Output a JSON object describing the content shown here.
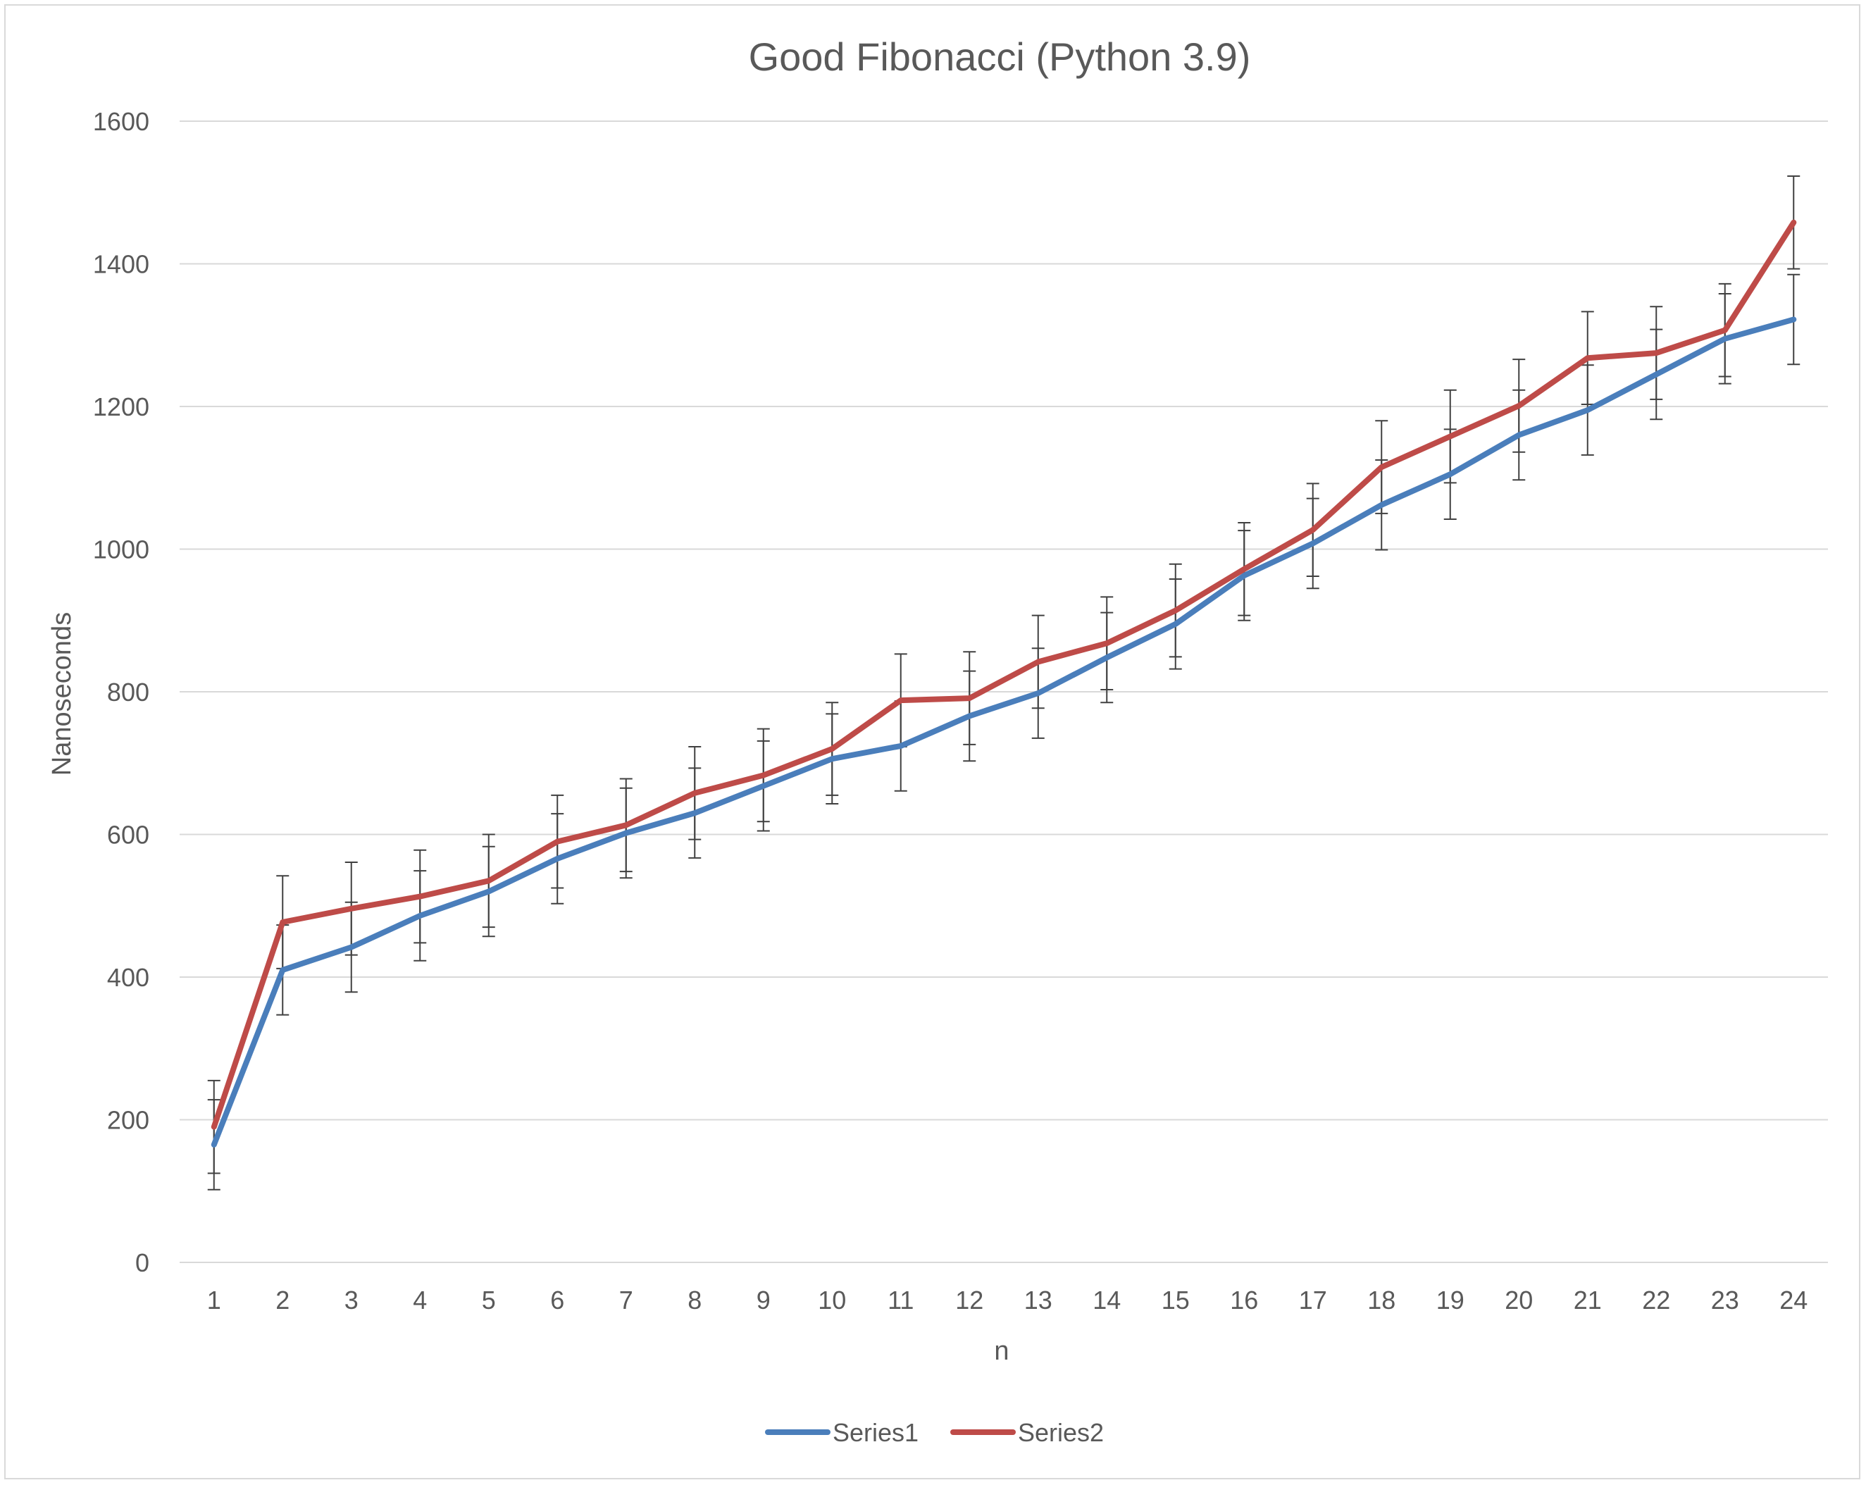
{
  "chart_data": {
    "type": "line",
    "title": "Good Fibonacci (Python 3.9)",
    "xlabel": "n",
    "ylabel": "Nanoseconds",
    "ylim": [
      0,
      1600
    ],
    "yticks": [
      "0",
      "200",
      "400",
      "600",
      "800",
      "1000",
      "1200",
      "1400",
      "1600"
    ],
    "categories": [
      "1",
      "2",
      "3",
      "4",
      "5",
      "6",
      "7",
      "8",
      "9",
      "10",
      "11",
      "12",
      "13",
      "14",
      "15",
      "16",
      "17",
      "18",
      "19",
      "20",
      "21",
      "22",
      "23",
      "24"
    ],
    "grid": "horizontal",
    "legend_position": "bottom",
    "error_bars": "±~65",
    "series": [
      {
        "name": "Series1",
        "color": "#4a7ebb",
        "values": [
          165,
          410,
          442,
          486,
          520,
          566,
          602,
          630,
          668,
          706,
          724,
          766,
          798,
          848,
          895,
          963,
          1008,
          1062,
          1105,
          1160,
          1195,
          1245,
          1295,
          1322
        ],
        "errors": [
          63,
          63,
          63,
          63,
          63,
          63,
          63,
          63,
          63,
          63,
          63,
          63,
          63,
          63,
          63,
          63,
          63,
          63,
          63,
          63,
          63,
          63,
          63,
          63
        ]
      },
      {
        "name": "Series2",
        "color": "#be4b48",
        "values": [
          190,
          477,
          496,
          513,
          535,
          590,
          613,
          658,
          683,
          720,
          788,
          791,
          842,
          868,
          914,
          972,
          1027,
          1115,
          1158,
          1201,
          1268,
          1275,
          1307,
          1458
        ],
        "errors": [
          65,
          65,
          65,
          65,
          65,
          65,
          65,
          65,
          65,
          65,
          65,
          65,
          65,
          65,
          65,
          65,
          65,
          65,
          65,
          65,
          65,
          65,
          65,
          65
        ]
      }
    ]
  }
}
